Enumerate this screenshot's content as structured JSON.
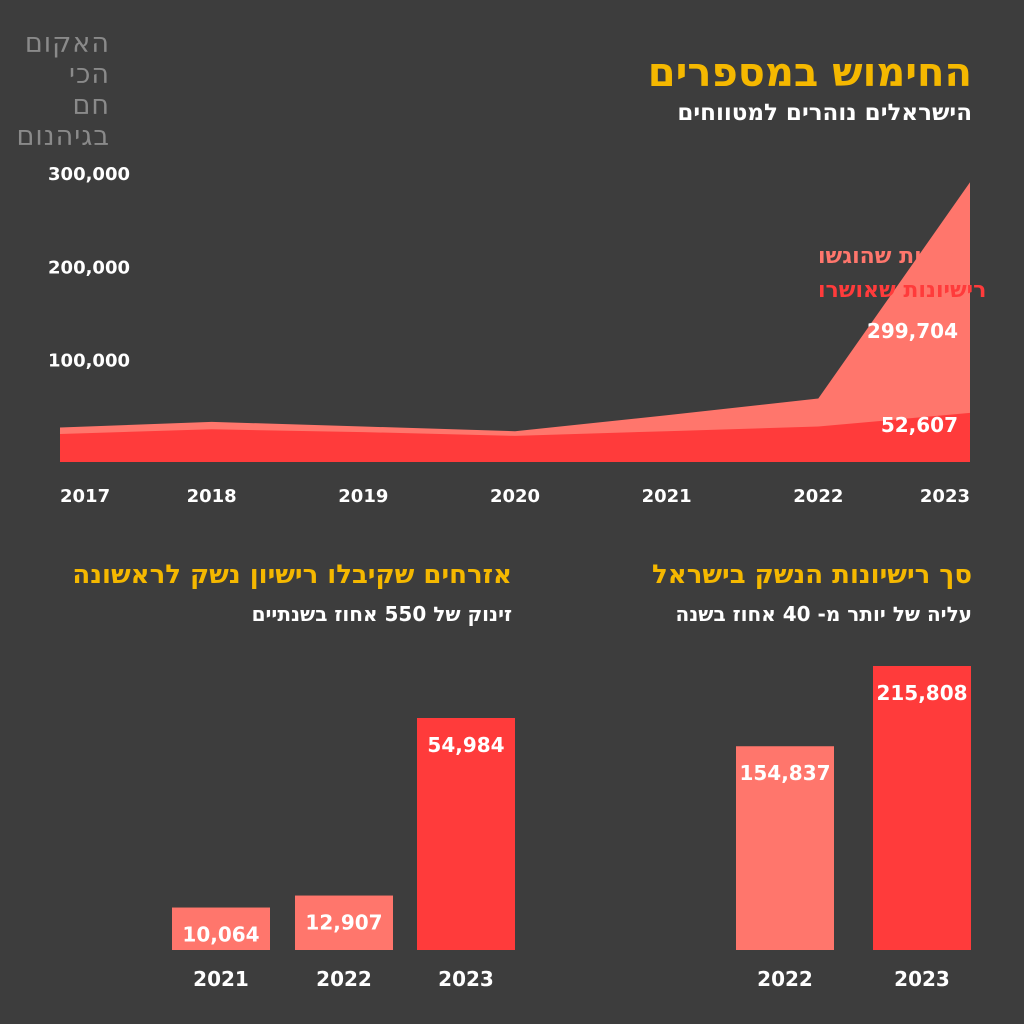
{
  "logo": {
    "lines": [
      "האקום",
      "הכי חם",
      "בגיהנום"
    ]
  },
  "header": {
    "title": "החימוש במספרים",
    "subtitle": "הישראלים נוהרים למטווחים"
  },
  "left_section": {
    "title": "אזרחים שקיבלו רישיון נשק לראשונה",
    "subtitle": "זינוק של 550 אחוז בשנתיים"
  },
  "right_section": {
    "title": "סך רישיונות הנשק בישראל",
    "subtitle": "עליה של יותר מ- 40 אחוז בשנה"
  },
  "colors": {
    "background": "#3d3d3d",
    "light_red": "#ff766c",
    "red": "#ff3b3b",
    "yellow": "#f5b800",
    "white": "#ffffff"
  },
  "chart_data": [
    {
      "type": "area",
      "x": [
        "2017",
        "2018",
        "2019",
        "2020",
        "2021",
        "2022",
        "2023"
      ],
      "series": [
        {
          "name": "בקשות שהוגשו",
          "values": [
            37000,
            43000,
            38000,
            33000,
            50000,
            68000,
            299704
          ],
          "color": "#ff766c"
        },
        {
          "name": "רישיונות שאושרו",
          "values": [
            30000,
            35000,
            32000,
            28000,
            33000,
            38000,
            52607
          ],
          "color": "#ff3b3b"
        }
      ],
      "data_labels": [
        "299,704",
        "52,607"
      ],
      "y_ticks": [
        "100,000",
        "200,000",
        "300,000"
      ],
      "ylim": [
        0,
        300000
      ],
      "legend_position": "inside-right"
    },
    {
      "type": "bar",
      "categories": [
        "2021",
        "2022",
        "2023"
      ],
      "values": [
        10064,
        12907,
        54984
      ],
      "labels": [
        "10,064",
        "12,907",
        "54,984"
      ],
      "colors": [
        "#ff766c",
        "#ff766c",
        "#ff3b3b"
      ]
    },
    {
      "type": "bar",
      "categories": [
        "2022",
        "2023"
      ],
      "values": [
        154837,
        215808
      ],
      "labels": [
        "154,837",
        "215,808"
      ],
      "colors": [
        "#ff766c",
        "#ff3b3b"
      ]
    }
  ]
}
